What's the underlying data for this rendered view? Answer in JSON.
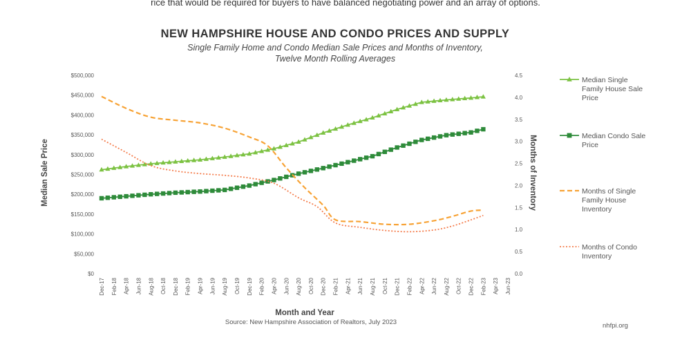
{
  "page": {
    "top_text": "rice that would be required for buyers to have balanced negotiating power and an array of options.",
    "source": "Source: New Hampshire Association of Realtors, July 2023",
    "credit": "nhfpi.org"
  },
  "chart_data": {
    "type": "line",
    "title": "NEW HAMPSHIRE HOUSE AND CONDO PRICES AND SUPPLY",
    "subtitle_line1": "Single Family Home and Condo Median Sale Prices and Months of Inventory,",
    "subtitle_line2": "Twelve Month Rolling Averages",
    "xlabel": "Month and Year",
    "ylabel": "Median Sale Price",
    "y2label": "Months of Inventory",
    "ylim": [
      0,
      500000
    ],
    "y2lim": [
      0,
      4.5
    ],
    "y_ticks": [
      "$0",
      "$50,000",
      "$100,000",
      "$150,000",
      "$200,000",
      "$250,000",
      "$300,000",
      "$350,000",
      "$400,000",
      "$450,000",
      "$500,000"
    ],
    "y2_ticks": [
      "0.0",
      "0.5",
      "1.0",
      "1.5",
      "2.0",
      "2.5",
      "3.0",
      "3.5",
      "4.0",
      "4.5"
    ],
    "x_ticks": [
      "Dec-17",
      "Feb-18",
      "Apr-18",
      "Jun-18",
      "Aug-18",
      "Oct-18",
      "Dec-18",
      "Feb-19",
      "Apr-19",
      "Jun-19",
      "Aug-19",
      "Oct-19",
      "Dec-19",
      "Feb-20",
      "Apr-20",
      "Jun-20",
      "Aug-20",
      "Oct-20",
      "Dec-20",
      "Feb-21",
      "Apr-21",
      "Jun-21",
      "Aug-21",
      "Oct-21",
      "Dec-21",
      "Feb-22",
      "Apr-22",
      "Jun-22",
      "Aug-22",
      "Oct-22",
      "Dec-22",
      "Feb-23",
      "Apr-23",
      "Jun-23"
    ],
    "x_start": "Dec-17",
    "x_end": "Jun-23",
    "legend_position": "right",
    "series": [
      {
        "name": "Median Single Family House Sale Price",
        "legend_lines": [
          "Median Single",
          "Family House Sale",
          "Price"
        ],
        "axis": "left",
        "style": "solid-triangle",
        "color": "#7cc242",
        "anchors": [
          [
            0,
            262000
          ],
          [
            4,
            270000
          ],
          [
            8,
            277000
          ],
          [
            12,
            282000
          ],
          [
            16,
            287000
          ],
          [
            20,
            294000
          ],
          [
            24,
            302000
          ],
          [
            28,
            315000
          ],
          [
            32,
            332000
          ],
          [
            36,
            355000
          ],
          [
            40,
            375000
          ],
          [
            44,
            393000
          ],
          [
            48,
            414000
          ],
          [
            52,
            432000
          ],
          [
            56,
            438000
          ],
          [
            60,
            443000
          ],
          [
            62,
            446000
          ]
        ]
      },
      {
        "name": "Median Condo Sale Price",
        "legend_lines": [
          "Median Condo Sale",
          "Price"
        ],
        "axis": "left",
        "style": "solid-square",
        "color": "#2e8b3a",
        "anchors": [
          [
            0,
            190000
          ],
          [
            4,
            195000
          ],
          [
            8,
            200000
          ],
          [
            12,
            204000
          ],
          [
            16,
            207000
          ],
          [
            20,
            211000
          ],
          [
            24,
            222000
          ],
          [
            28,
            236000
          ],
          [
            32,
            252000
          ],
          [
            36,
            266000
          ],
          [
            40,
            281000
          ],
          [
            44,
            296000
          ],
          [
            48,
            318000
          ],
          [
            52,
            337000
          ],
          [
            56,
            349000
          ],
          [
            60,
            356000
          ],
          [
            62,
            364000
          ]
        ]
      },
      {
        "name": "Months of Single Family House Inventory",
        "legend_lines": [
          "Months of Single",
          "Family House",
          "Inventory"
        ],
        "axis": "right",
        "style": "dashed",
        "color": "#f7a234",
        "anchors": [
          [
            0,
            4.02
          ],
          [
            4,
            3.75
          ],
          [
            8,
            3.55
          ],
          [
            12,
            3.48
          ],
          [
            16,
            3.42
          ],
          [
            20,
            3.3
          ],
          [
            24,
            3.1
          ],
          [
            27,
            2.9
          ],
          [
            30,
            2.4
          ],
          [
            33,
            1.95
          ],
          [
            36,
            1.55
          ],
          [
            38,
            1.22
          ],
          [
            42,
            1.18
          ],
          [
            46,
            1.12
          ],
          [
            50,
            1.12
          ],
          [
            54,
            1.2
          ],
          [
            57,
            1.3
          ],
          [
            60,
            1.42
          ],
          [
            62,
            1.44
          ]
        ]
      },
      {
        "name": "Months of Condo Inventory",
        "legend_lines": [
          "Months of Condo",
          "Inventory"
        ],
        "axis": "right",
        "style": "dotted",
        "color": "#f47b4a",
        "anchors": [
          [
            0,
            3.05
          ],
          [
            4,
            2.75
          ],
          [
            8,
            2.45
          ],
          [
            12,
            2.33
          ],
          [
            16,
            2.27
          ],
          [
            20,
            2.23
          ],
          [
            24,
            2.17
          ],
          [
            28,
            2.05
          ],
          [
            32,
            1.72
          ],
          [
            35,
            1.52
          ],
          [
            38,
            1.15
          ],
          [
            42,
            1.05
          ],
          [
            46,
            0.98
          ],
          [
            50,
            0.95
          ],
          [
            54,
            0.99
          ],
          [
            57,
            1.08
          ],
          [
            60,
            1.22
          ],
          [
            62,
            1.32
          ]
        ]
      }
    ]
  }
}
